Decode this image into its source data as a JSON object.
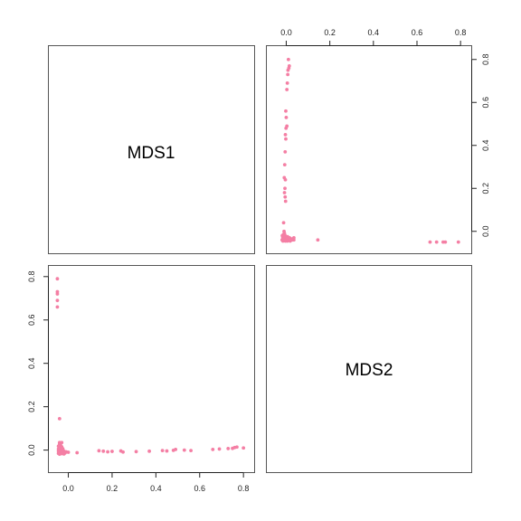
{
  "chart_data": {
    "type": "scatter",
    "title": "",
    "layout": "pairs-matrix",
    "variables": [
      "MDS1",
      "MDS2"
    ],
    "point_color": "#F47FA4",
    "grid": false,
    "axis_range": [
      -0.06,
      0.82
    ],
    "ticks": [
      0.0,
      0.2,
      0.4,
      0.6,
      0.8
    ],
    "tick_labels": [
      "0.0",
      "0.2",
      "0.4",
      "0.6",
      "0.8"
    ],
    "points": [
      {
        "mds1": -0.05,
        "mds2": 0.79
      },
      {
        "mds1": -0.05,
        "mds2": 0.73
      },
      {
        "mds1": -0.05,
        "mds2": 0.72
      },
      {
        "mds1": -0.05,
        "mds2": 0.69
      },
      {
        "mds1": -0.05,
        "mds2": 0.66
      },
      {
        "mds1": -0.04,
        "mds2": 0.145
      },
      {
        "mds1": -0.04,
        "mds2": 0.035
      },
      {
        "mds1": -0.03,
        "mds2": 0.035
      },
      {
        "mds1": -0.04,
        "mds2": 0.028
      },
      {
        "mds1": -0.035,
        "mds2": 0.022
      },
      {
        "mds1": -0.045,
        "mds2": 0.018
      },
      {
        "mds1": -0.03,
        "mds2": 0.015
      },
      {
        "mds1": -0.04,
        "mds2": 0.012
      },
      {
        "mds1": -0.035,
        "mds2": 0.008
      },
      {
        "mds1": -0.025,
        "mds2": 0.006
      },
      {
        "mds1": -0.045,
        "mds2": 0.005
      },
      {
        "mds1": -0.04,
        "mds2": 0.002
      },
      {
        "mds1": -0.03,
        "mds2": 0.0
      },
      {
        "mds1": -0.035,
        "mds2": -0.002
      },
      {
        "mds1": -0.045,
        "mds2": -0.004
      },
      {
        "mds1": -0.02,
        "mds2": -0.005
      },
      {
        "mds1": -0.03,
        "mds2": -0.007
      },
      {
        "mds1": -0.04,
        "mds2": -0.008
      },
      {
        "mds1": -0.025,
        "mds2": -0.01
      },
      {
        "mds1": -0.035,
        "mds2": -0.012
      },
      {
        "mds1": -0.015,
        "mds2": -0.013
      },
      {
        "mds1": -0.045,
        "mds2": -0.015
      },
      {
        "mds1": -0.03,
        "mds2": -0.016
      },
      {
        "mds1": -0.02,
        "mds2": -0.018
      },
      {
        "mds1": -0.04,
        "mds2": -0.019
      },
      {
        "mds1": -0.01,
        "mds2": -0.008
      },
      {
        "mds1": 0.0,
        "mds2": -0.01
      },
      {
        "mds1": 0.04,
        "mds2": -0.012
      },
      {
        "mds1": 0.14,
        "mds2": -0.003
      },
      {
        "mds1": 0.16,
        "mds2": -0.005
      },
      {
        "mds1": 0.18,
        "mds2": -0.008
      },
      {
        "mds1": 0.2,
        "mds2": -0.006
      },
      {
        "mds1": 0.24,
        "mds2": -0.004
      },
      {
        "mds1": 0.25,
        "mds2": -0.009
      },
      {
        "mds1": 0.31,
        "mds2": -0.007
      },
      {
        "mds1": 0.37,
        "mds2": -0.005
      },
      {
        "mds1": 0.43,
        "mds2": -0.002
      },
      {
        "mds1": 0.45,
        "mds2": -0.004
      },
      {
        "mds1": 0.48,
        "mds2": -0.001
      },
      {
        "mds1": 0.49,
        "mds2": 0.003
      },
      {
        "mds1": 0.53,
        "mds2": 0.0
      },
      {
        "mds1": 0.56,
        "mds2": -0.002
      },
      {
        "mds1": 0.66,
        "mds2": 0.003
      },
      {
        "mds1": 0.69,
        "mds2": 0.005
      },
      {
        "mds1": 0.73,
        "mds2": 0.007
      },
      {
        "mds1": 0.75,
        "mds2": 0.008
      },
      {
        "mds1": 0.76,
        "mds2": 0.012
      },
      {
        "mds1": 0.77,
        "mds2": 0.014
      },
      {
        "mds1": 0.8,
        "mds2": 0.01
      }
    ]
  }
}
